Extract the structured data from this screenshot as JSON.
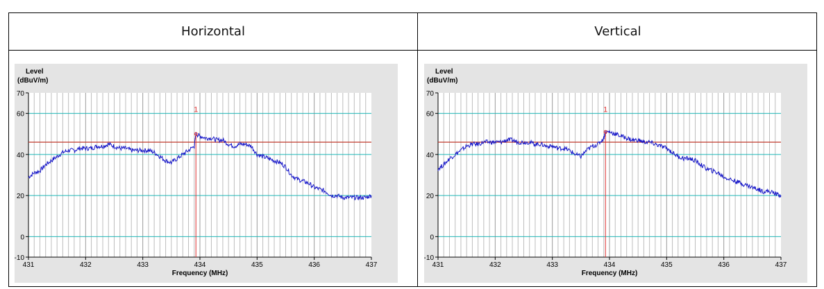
{
  "headers": [
    "Horizontal",
    "Vertical"
  ],
  "chart_data": [
    {
      "type": "line",
      "title": "Horizontal",
      "ylabel_line1": "Level",
      "ylabel_line2": "(dBuV/m)",
      "xlabel": "Frequency (MHz)",
      "xlim": [
        431,
        437
      ],
      "ylim": [
        -10,
        70
      ],
      "x_ticks": [
        431,
        432,
        433,
        434,
        435,
        436,
        437
      ],
      "y_ticks": [
        -10,
        0,
        20,
        40,
        60,
        70
      ],
      "y_tick_labels": [
        "-10",
        "0",
        "20",
        "40",
        "60",
        "70"
      ],
      "limit_line": 46,
      "marker": {
        "label": "1",
        "x": 433.93,
        "y": 50
      },
      "series": [
        {
          "x": [
            431.0,
            431.1,
            431.2,
            431.3,
            431.4,
            431.5,
            431.6,
            431.7,
            431.8,
            431.9,
            432.0,
            432.1,
            432.2,
            432.3,
            432.4,
            432.5,
            432.6,
            432.7,
            432.8,
            432.9,
            433.0,
            433.1,
            433.2,
            433.3,
            433.4,
            433.5,
            433.6,
            433.7,
            433.8,
            433.9,
            433.93,
            434.0,
            434.1,
            434.2,
            434.3,
            434.4,
            434.5,
            434.6,
            434.7,
            434.8,
            434.9,
            435.0,
            435.1,
            435.2,
            435.3,
            435.4,
            435.5,
            435.6,
            435.7,
            435.8,
            435.9,
            436.0,
            436.1,
            436.2,
            436.3,
            436.4,
            436.5,
            436.6,
            436.7,
            436.8,
            436.9,
            437.0
          ],
          "y": [
            29,
            31,
            32,
            35,
            37,
            39,
            41,
            42,
            42,
            43,
            43,
            43,
            44,
            44,
            45,
            44,
            43,
            43,
            42,
            42,
            42,
            42,
            41,
            39,
            37,
            36,
            38,
            40,
            42,
            44,
            50,
            49,
            48,
            48,
            47,
            47,
            45,
            44,
            45,
            45,
            44,
            40,
            39,
            38,
            37,
            36,
            34,
            30,
            28,
            27,
            26,
            24,
            23,
            22,
            20,
            20,
            19,
            19,
            19,
            19,
            19,
            20
          ]
        }
      ]
    },
    {
      "type": "line",
      "title": "Vertical",
      "ylabel_line1": "Level",
      "ylabel_line2": "(dBuV/m)",
      "xlabel": "Frequency (MHz)",
      "xlim": [
        431,
        437
      ],
      "ylim": [
        -10,
        70
      ],
      "x_ticks": [
        431,
        432,
        433,
        434,
        435,
        436,
        437
      ],
      "y_ticks": [
        -10,
        0,
        20,
        40,
        60,
        70
      ],
      "y_tick_labels": [
        "-10",
        "0",
        "20",
        "40",
        "60",
        "70"
      ],
      "limit_line": 46,
      "marker": {
        "label": "1",
        "x": 433.93,
        "y": 51
      },
      "series": [
        {
          "x": [
            431.0,
            431.1,
            431.2,
            431.3,
            431.4,
            431.5,
            431.6,
            431.7,
            431.8,
            431.9,
            432.0,
            432.1,
            432.2,
            432.3,
            432.4,
            432.5,
            432.6,
            432.7,
            432.8,
            432.9,
            433.0,
            433.1,
            433.2,
            433.3,
            433.4,
            433.5,
            433.6,
            433.7,
            433.8,
            433.9,
            433.93,
            434.0,
            434.1,
            434.2,
            434.3,
            434.4,
            434.5,
            434.6,
            434.7,
            434.8,
            434.9,
            435.0,
            435.1,
            435.2,
            435.3,
            435.4,
            435.5,
            435.6,
            435.7,
            435.8,
            435.9,
            436.0,
            436.1,
            436.2,
            436.3,
            436.4,
            436.5,
            436.6,
            436.7,
            436.8,
            436.9,
            437.0
          ],
          "y": [
            33,
            35,
            38,
            40,
            42,
            44,
            45,
            45,
            46,
            46,
            46,
            46,
            47,
            47,
            46,
            46,
            46,
            45,
            45,
            44,
            44,
            43,
            43,
            42,
            40,
            39,
            42,
            44,
            45,
            48,
            51,
            51,
            50,
            49,
            48,
            47,
            47,
            46,
            46,
            45,
            44,
            43,
            41,
            39,
            38,
            38,
            37,
            35,
            33,
            32,
            31,
            29,
            28,
            27,
            26,
            25,
            24,
            23,
            22,
            22,
            21,
            20
          ]
        }
      ]
    }
  ]
}
